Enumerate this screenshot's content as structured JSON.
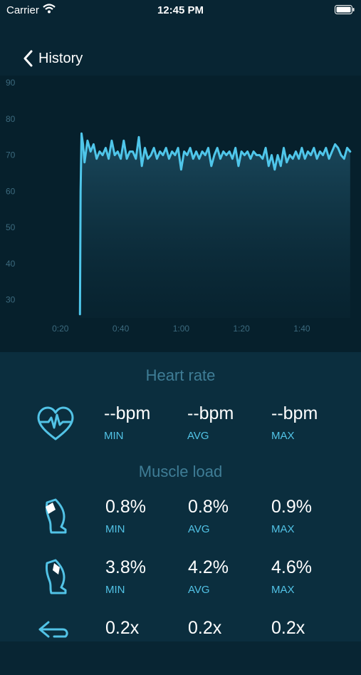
{
  "status_bar": {
    "carrier": "Carrier",
    "time": "12:45 PM"
  },
  "nav": {
    "back_label": "History"
  },
  "chart_data": {
    "type": "line",
    "title": "",
    "xlabel": "",
    "ylabel": "",
    "y_ticks": [
      "90",
      "80",
      "70",
      "60",
      "50",
      "40",
      "30"
    ],
    "x_ticks": [
      "0:20",
      "0:40",
      "1:00",
      "1:20",
      "1:40"
    ],
    "ylim": [
      25,
      92
    ],
    "xlim": [
      0,
      117
    ],
    "grid": false,
    "line_color": "#4fc6ea",
    "series": [
      {
        "x": [
          26.5,
          26.7,
          27,
          27.5,
          28,
          29,
          30,
          31,
          32,
          33,
          34,
          35,
          36,
          37,
          38,
          39,
          40,
          41,
          42,
          43,
          44,
          45,
          46,
          47,
          48,
          49,
          50,
          51,
          52,
          53,
          54,
          55,
          56,
          57,
          58,
          59,
          60,
          61,
          62,
          63,
          64,
          65,
          66,
          67,
          68,
          69,
          70,
          71,
          72,
          73,
          74,
          75,
          76,
          77,
          78,
          79,
          80,
          81,
          82,
          83,
          84,
          85,
          86,
          87,
          88,
          89,
          90,
          91,
          92,
          93,
          94,
          95,
          96,
          97,
          98,
          99,
          100,
          101,
          102,
          103,
          104,
          105,
          106,
          107,
          108,
          109,
          110,
          111,
          112,
          113,
          114,
          115,
          116
        ],
        "y": [
          26,
          60,
          76,
          73,
          68,
          74,
          71,
          73,
          69,
          71,
          70,
          72,
          69,
          74,
          70,
          71,
          69,
          74,
          69,
          71,
          71,
          69,
          75,
          67,
          72,
          69,
          70,
          72,
          69,
          71,
          70,
          72,
          69,
          71,
          70,
          72,
          66,
          71,
          70,
          72,
          69,
          71,
          69,
          71,
          70,
          72,
          67,
          70,
          72,
          69,
          71,
          70,
          71,
          69,
          72,
          67,
          71,
          70,
          71,
          69,
          71,
          70,
          70,
          69,
          72,
          67,
          70,
          66,
          70,
          67,
          72,
          68,
          70,
          69,
          71,
          69,
          72,
          69,
          71,
          70,
          72,
          69,
          71,
          70,
          72,
          69,
          71,
          73,
          72,
          70,
          69,
          72,
          71
        ]
      }
    ]
  },
  "heart_rate": {
    "title": "Heart rate",
    "icon": "heart-rate-icon",
    "min": "--bpm",
    "avg": "--bpm",
    "max": "--bpm"
  },
  "muscle_load": {
    "title": "Muscle load",
    "rows": [
      {
        "icon": "front-thigh-icon",
        "min": "0.8%",
        "avg": "0.8%",
        "max": "0.9%"
      },
      {
        "icon": "back-thigh-icon",
        "min": "3.8%",
        "avg": "4.2%",
        "max": "4.6%"
      },
      {
        "icon": "balance-arrow-icon",
        "min": "0.2x",
        "avg": "0.2x",
        "max": "0.2x"
      }
    ]
  },
  "labels": {
    "min": "MIN",
    "avg": "AVG",
    "max": "MAX"
  }
}
